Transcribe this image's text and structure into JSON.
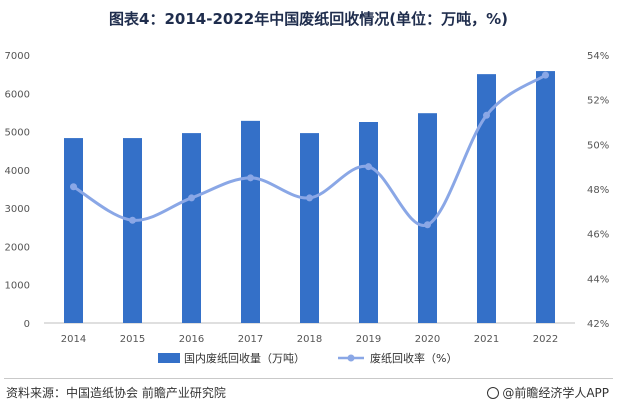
{
  "title": "图表4：2014-2022年中国废纸回收情况(单位：万吨，%)",
  "source": "资料来源：中国造纸协会 前瞻产业研究院",
  "brand": "@前瞻经济学人APP",
  "colors": {
    "bar": "#3470c8",
    "line": "#8aa7e6"
  },
  "chart_data": {
    "type": "bar",
    "categories": [
      "2014",
      "2015",
      "2016",
      "2017",
      "2018",
      "2019",
      "2020",
      "2021",
      "2022"
    ],
    "series": [
      {
        "name": "国内废纸回收量（万吨）",
        "type": "bar",
        "axis": "left",
        "values": [
          4830,
          4830,
          4960,
          5280,
          4960,
          5250,
          5480,
          6500,
          6580
        ]
      },
      {
        "name": "废纸回收率（%）",
        "type": "line",
        "axis": "right",
        "values": [
          48.1,
          46.6,
          47.6,
          48.5,
          47.6,
          49.0,
          46.4,
          51.3,
          53.1
        ]
      }
    ],
    "y_left": {
      "min": 0,
      "max": 7000,
      "ticks": [
        "0",
        "1000",
        "2000",
        "3000",
        "4000",
        "5000",
        "6000",
        "7000"
      ]
    },
    "y_right": {
      "min": 42,
      "max": 54,
      "ticks": [
        "42%",
        "44%",
        "46%",
        "48%",
        "50%",
        "52%",
        "54%"
      ]
    },
    "grid": false,
    "legend": "bottom"
  }
}
